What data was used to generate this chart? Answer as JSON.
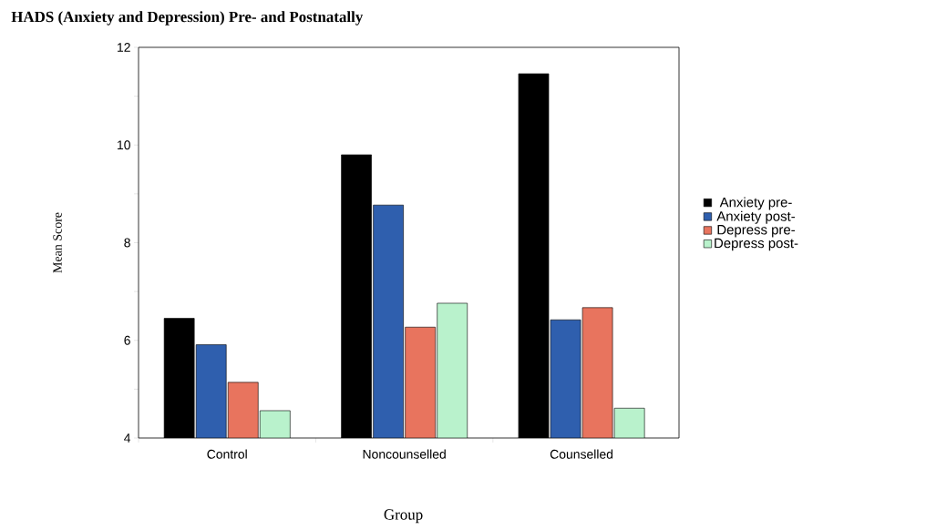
{
  "chart_data": {
    "type": "bar",
    "title": "HADS (Anxiety and Depression) Pre- and Postnatally",
    "xlabel": "Group",
    "ylabel": "Mean Score",
    "categories": [
      "Control",
      "Noncounselled",
      "Counselled"
    ],
    "series": [
      {
        "name": "Anxiety pre-",
        "color": "#000000",
        "values": [
          6.45,
          9.8,
          11.46
        ]
      },
      {
        "name": "Anxiety post-",
        "color": "#2f5fae",
        "values": [
          5.91,
          8.77,
          6.42
        ]
      },
      {
        "name": "Depress pre-",
        "color": "#e8745e",
        "values": [
          5.14,
          6.27,
          6.67
        ]
      },
      {
        "name": "Depress post-",
        "color": "#b9f2cc",
        "values": [
          4.56,
          6.76,
          4.61
        ]
      }
    ],
    "ylim": [
      4,
      12
    ],
    "yticks": [
      4,
      {
        "value": 5,
        "label": null
      },
      6,
      {
        "value": 7,
        "label": null
      },
      8,
      {
        "value": 9,
        "label": null
      },
      10,
      {
        "value": 11,
        "label": null
      },
      12
    ],
    "legend": "right"
  }
}
